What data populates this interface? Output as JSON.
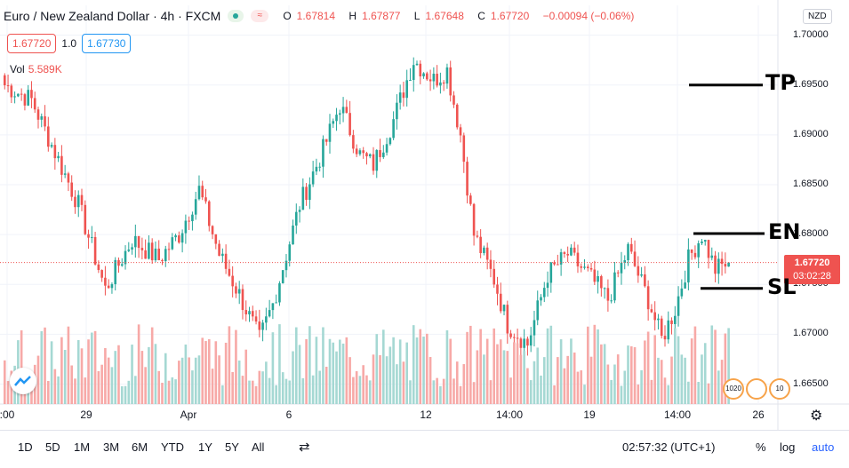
{
  "header": {
    "symbol_title": "Euro / New Zealand Dollar · 4h · FXCM",
    "ohlc": {
      "open_label": "O",
      "open": "1.67814",
      "high_label": "H",
      "high": "1.67877",
      "low_label": "L",
      "low": "1.67648",
      "close_label": "C",
      "close": "1.67720",
      "change": "−0.00094 (−0.06%)"
    },
    "status_icon": "market-open-icon",
    "wave_icon": "wave-icon"
  },
  "trade": {
    "sell_price": "1.67720",
    "spread": "1.0",
    "buy_price": "1.67730"
  },
  "volume": {
    "label": "Vol",
    "value": "5.589K"
  },
  "currency": "NZD",
  "colors": {
    "up": "#26a69a",
    "down": "#ef5350",
    "up_volume": "#a5d8d3",
    "down_volume": "#f7a9a7",
    "grid": "#f0f3fa"
  },
  "last_price_tag": {
    "price": "1.67720",
    "countdown": "03:02:28"
  },
  "annotations": {
    "tp": "TP",
    "en": "EN",
    "sl": "SL"
  },
  "bottom_bar": {
    "ranges": [
      "1D",
      "5D",
      "1M",
      "3M",
      "6M",
      "YTD",
      "1Y",
      "5Y",
      "All"
    ],
    "clock": "02:57:32 (UTC+1)",
    "percent": "%",
    "log": "log",
    "auto": "auto"
  },
  "event_badges": [
    "1020",
    "",
    "10"
  ],
  "chart_data": {
    "type": "candlestick",
    "title": "Euro / New Zealand Dollar",
    "interval": "4h",
    "source": "FXCM",
    "ylim": [
      1.663,
      1.703
    ],
    "y_ticks": [
      "1.70000",
      "1.69500",
      "1.69000",
      "1.68500",
      "1.68000",
      "1.67500",
      "1.67000",
      "1.66500"
    ],
    "x_ticks": [
      ":00",
      "29",
      "Apr",
      "6",
      "12",
      "14:00",
      "19",
      "14:00",
      "26"
    ],
    "last_price": 1.6772,
    "levels": {
      "TP": 1.695,
      "EN": 1.6801,
      "SL": 1.6746
    },
    "waypoints": [
      [
        0,
        1.695
      ],
      [
        8,
        1.6935
      ],
      [
        14,
        1.689
      ],
      [
        22,
        1.683
      ],
      [
        30,
        1.6745
      ],
      [
        38,
        1.6795
      ],
      [
        46,
        1.6775
      ],
      [
        52,
        1.68
      ],
      [
        58,
        1.6845
      ],
      [
        64,
        1.678
      ],
      [
        70,
        1.674
      ],
      [
        76,
        1.6695
      ],
      [
        80,
        1.673
      ],
      [
        88,
        1.683
      ],
      [
        95,
        1.6885
      ],
      [
        100,
        1.693
      ],
      [
        106,
        1.688
      ],
      [
        110,
        1.687
      ],
      [
        116,
        1.6915
      ],
      [
        122,
        1.6975
      ],
      [
        128,
        1.6955
      ],
      [
        132,
        1.6965
      ],
      [
        136,
        1.69
      ],
      [
        140,
        1.68
      ],
      [
        146,
        1.6755
      ],
      [
        150,
        1.671
      ],
      [
        156,
        1.669
      ],
      [
        162,
        1.676
      ],
      [
        168,
        1.678
      ],
      [
        174,
        1.676
      ],
      [
        180,
        1.6735
      ],
      [
        186,
        1.6785
      ],
      [
        192,
        1.6735
      ],
      [
        196,
        1.6695
      ],
      [
        200,
        1.6725
      ],
      [
        204,
        1.6775
      ],
      [
        208,
        1.68
      ],
      [
        212,
        1.6765
      ],
      [
        216,
        1.6772
      ]
    ]
  }
}
